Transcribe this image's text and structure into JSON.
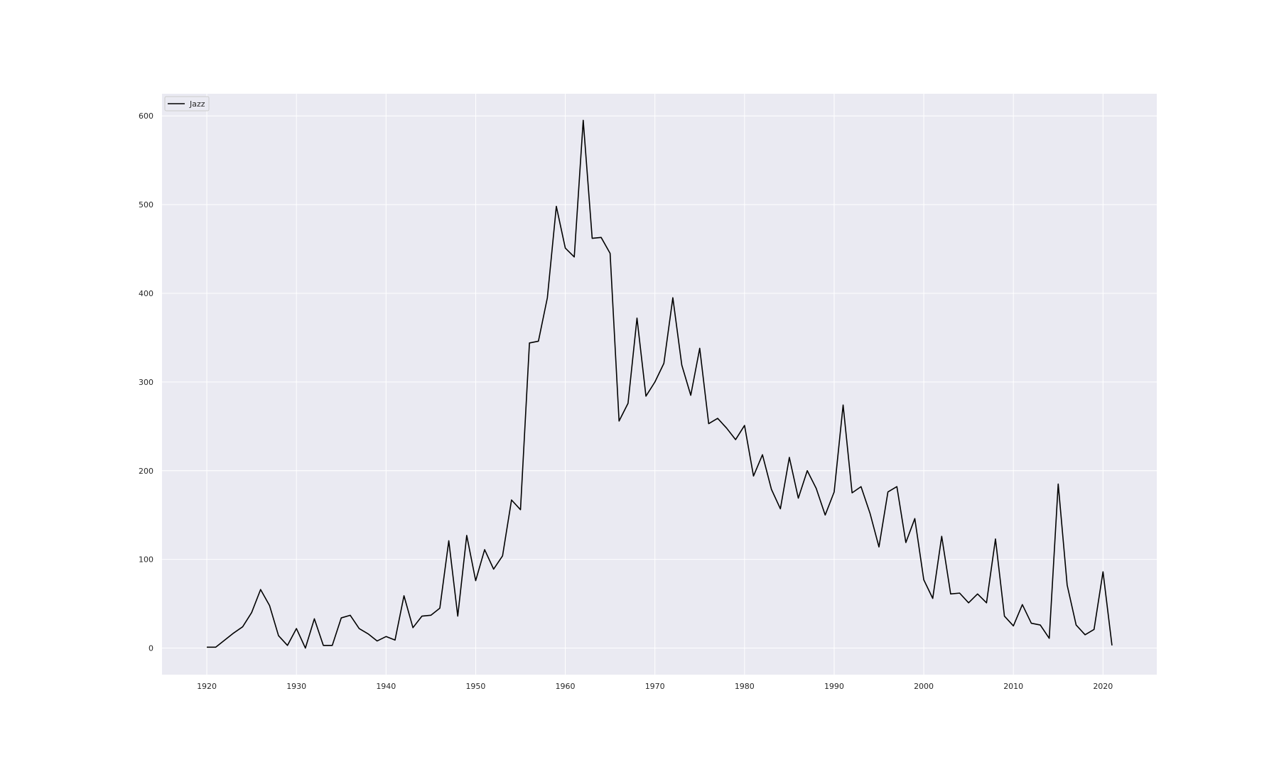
{
  "chart_data": {
    "type": "line",
    "title": "",
    "xlabel": "",
    "ylabel": "",
    "xlim": [
      1915,
      2026
    ],
    "ylim": [
      -30,
      625
    ],
    "x_ticks": [
      1920,
      1930,
      1940,
      1950,
      1960,
      1970,
      1980,
      1990,
      2000,
      2010,
      2020
    ],
    "y_ticks": [
      0,
      100,
      200,
      300,
      400,
      500,
      600
    ],
    "grid": true,
    "legend_position": "upper-left",
    "colors": {
      "background": "#eaeaf2",
      "grid": "#ffffff",
      "line": "#000000"
    },
    "x": [
      1920,
      1921,
      1922,
      1923,
      1924,
      1925,
      1926,
      1927,
      1928,
      1929,
      1930,
      1931,
      1932,
      1933,
      1934,
      1935,
      1936,
      1937,
      1938,
      1939,
      1940,
      1941,
      1942,
      1943,
      1944,
      1945,
      1946,
      1947,
      1948,
      1949,
      1950,
      1951,
      1952,
      1953,
      1954,
      1955,
      1956,
      1957,
      1958,
      1959,
      1960,
      1961,
      1962,
      1963,
      1964,
      1965,
      1966,
      1967,
      1968,
      1969,
      1970,
      1971,
      1972,
      1973,
      1974,
      1975,
      1976,
      1977,
      1978,
      1979,
      1980,
      1981,
      1982,
      1983,
      1984,
      1985,
      1986,
      1987,
      1988,
      1989,
      1990,
      1991,
      1992,
      1993,
      1994,
      1995,
      1996,
      1997,
      1998,
      1999,
      2000,
      2001,
      2002,
      2003,
      2004,
      2005,
      2006,
      2007,
      2008,
      2009,
      2010,
      2011,
      2012,
      2013,
      2014,
      2015,
      2016,
      2017,
      2018,
      2019,
      2020,
      2021
    ],
    "series": [
      {
        "name": "Jazz",
        "values": [
          1,
          1,
          9,
          17,
          24,
          40,
          66,
          48,
          14,
          3,
          22,
          0,
          33,
          3,
          3,
          34,
          37,
          22,
          16,
          8,
          13,
          9,
          59,
          23,
          36,
          37,
          45,
          121,
          36,
          127,
          76,
          111,
          89,
          104,
          167,
          156,
          344,
          346,
          395,
          498,
          451,
          441,
          595,
          462,
          463,
          445,
          256,
          276,
          372,
          284,
          300,
          321,
          395,
          319,
          285,
          338,
          253,
          259,
          248,
          235,
          251,
          194,
          218,
          179,
          157,
          215,
          169,
          200,
          180,
          150,
          176,
          274,
          175,
          182,
          152,
          114,
          176,
          182,
          119,
          146,
          77,
          56,
          126,
          61,
          62,
          51,
          61,
          51,
          123,
          36,
          25,
          49,
          28,
          26,
          11,
          185,
          71,
          26,
          15,
          21,
          86,
          3
        ]
      }
    ]
  }
}
